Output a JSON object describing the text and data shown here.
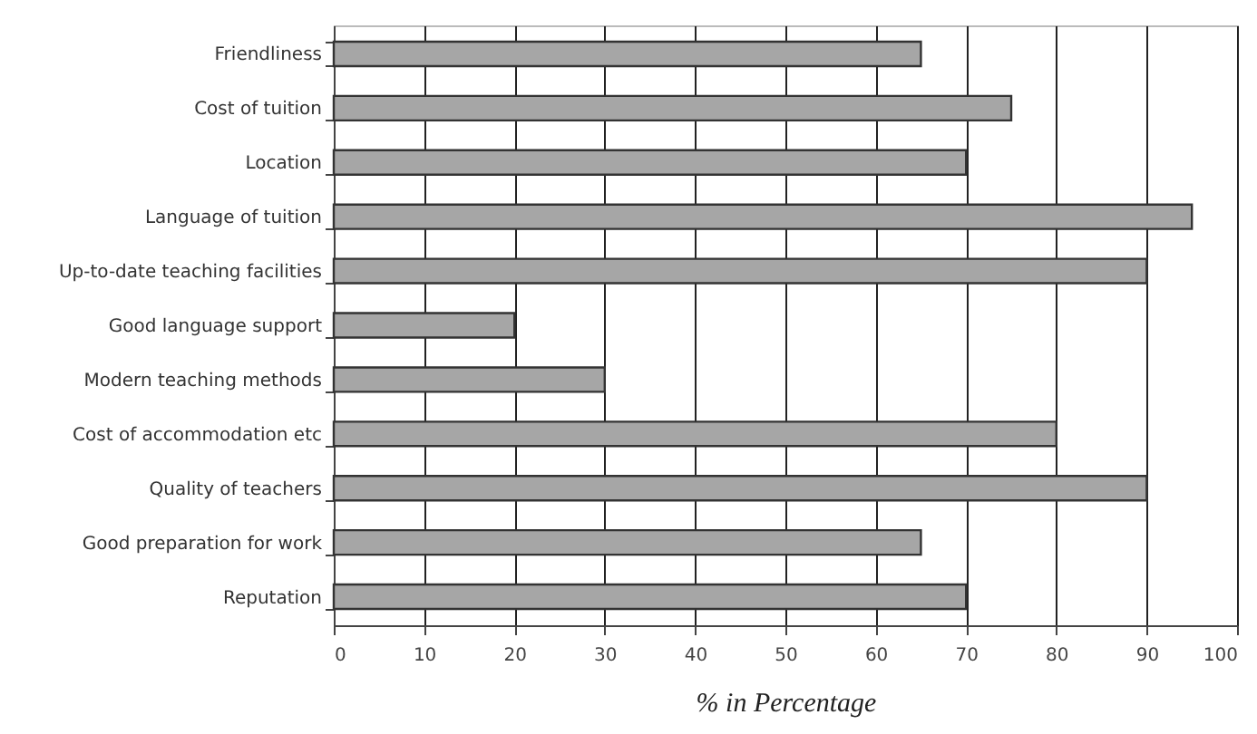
{
  "chart_data": {
    "type": "bar",
    "orientation": "horizontal",
    "xlabel": "% in Percentage",
    "categories": [
      "Friendliness",
      "Cost of tuition",
      "Location",
      "Language of tuition",
      "Up-to-date teaching facilities",
      "Good language support",
      "Modern teaching methods",
      "Cost of accommodation etc",
      "Quality of teachers",
      "Good preparation for work",
      "Reputation"
    ],
    "values": [
      65,
      75,
      70,
      95,
      90,
      20,
      30,
      80,
      90,
      65,
      70
    ],
    "color": "#a6a6a6",
    "xlim": [
      0,
      100
    ],
    "xticks": [
      0,
      10,
      20,
      30,
      40,
      50,
      60,
      70,
      80,
      90,
      100
    ],
    "grid": "x"
  }
}
